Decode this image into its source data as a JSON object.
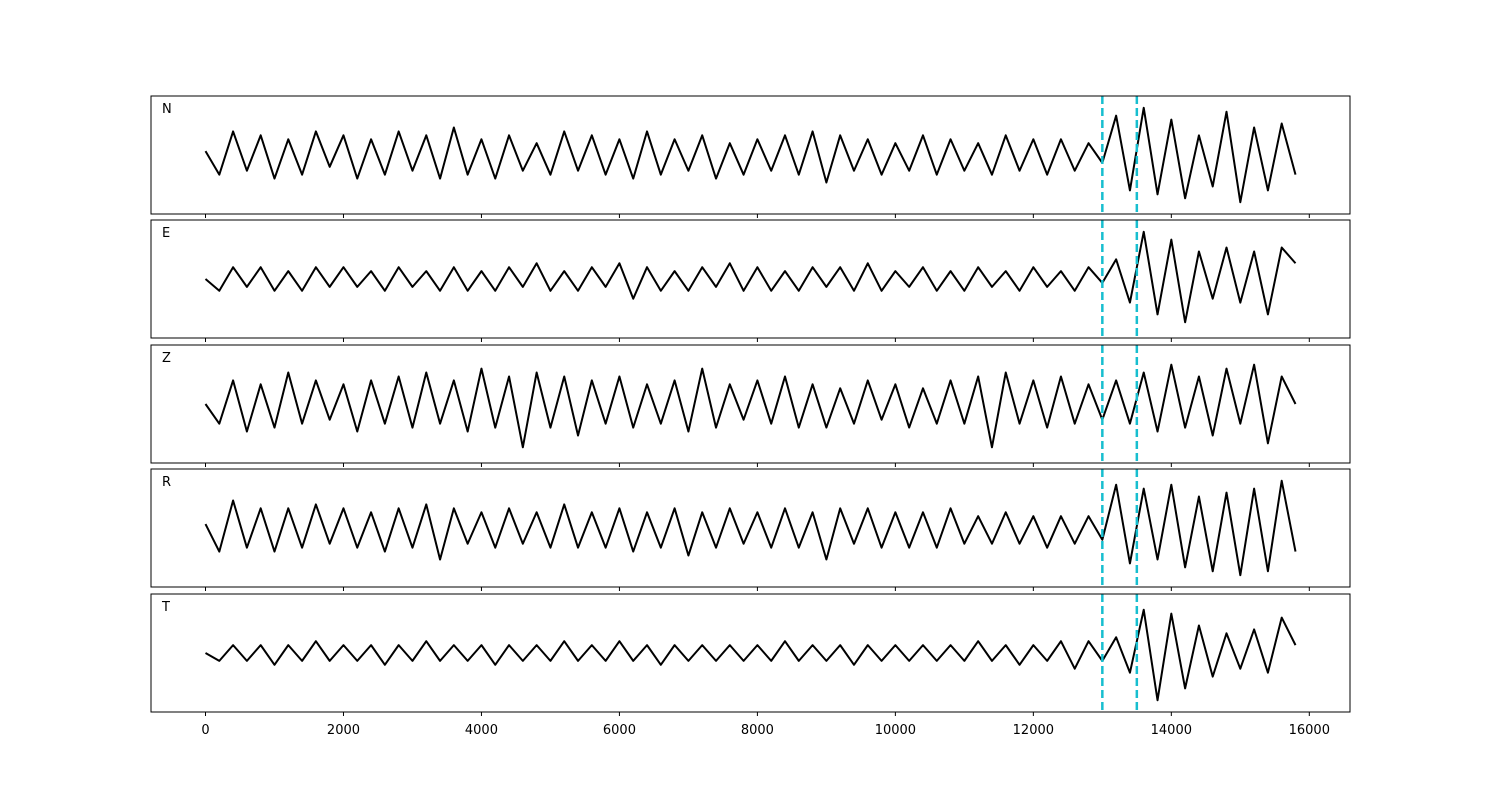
{
  "chart_data": [
    {
      "type": "line",
      "label": "N",
      "color": "#000000",
      "xlim": [
        -790,
        16590
      ],
      "ylim": [
        -1.5,
        1.5
      ],
      "vlines": [
        13000,
        13500
      ],
      "vline_color": "#17becf",
      "x": [
        0,
        200,
        400,
        600,
        800,
        1000,
        1200,
        1400,
        1600,
        1800,
        2000,
        2200,
        2400,
        2600,
        2800,
        3000,
        3200,
        3400,
        3600,
        3800,
        4000,
        4200,
        4400,
        4600,
        4800,
        5000,
        5200,
        5400,
        5600,
        5800,
        6000,
        6200,
        6400,
        6600,
        6800,
        7000,
        7200,
        7400,
        7600,
        7800,
        8000,
        8200,
        8400,
        8600,
        8800,
        9000,
        9200,
        9400,
        9600,
        9800,
        10000,
        10200,
        10400,
        10600,
        10800,
        11000,
        11200,
        11400,
        11600,
        11800,
        12000,
        12200,
        12400,
        12600,
        12800,
        13000,
        13200,
        13400,
        13600,
        13800,
        14000,
        14200,
        14400,
        14600,
        14800,
        15000,
        15200,
        15400,
        15600,
        15800
      ],
      "values": [
        0.1,
        -0.5,
        0.6,
        -0.4,
        0.5,
        -0.6,
        0.4,
        -0.5,
        0.6,
        -0.3,
        0.5,
        -0.6,
        0.4,
        -0.5,
        0.6,
        -0.4,
        0.5,
        -0.6,
        0.7,
        -0.5,
        0.4,
        -0.6,
        0.5,
        -0.4,
        0.3,
        -0.5,
        0.6,
        -0.4,
        0.5,
        -0.5,
        0.4,
        -0.6,
        0.6,
        -0.5,
        0.4,
        -0.4,
        0.5,
        -0.6,
        0.3,
        -0.5,
        0.4,
        -0.4,
        0.5,
        -0.5,
        0.6,
        -0.7,
        0.5,
        -0.4,
        0.4,
        -0.5,
        0.3,
        -0.4,
        0.5,
        -0.5,
        0.4,
        -0.4,
        0.3,
        -0.5,
        0.5,
        -0.4,
        0.4,
        -0.5,
        0.4,
        -0.4,
        0.3,
        -0.2,
        1.0,
        -0.9,
        1.2,
        -1.0,
        0.9,
        -1.1,
        0.5,
        -0.8,
        1.1,
        -1.2,
        0.7,
        -0.9,
        0.8,
        -0.5
      ]
    },
    {
      "type": "line",
      "label": "E",
      "color": "#000000",
      "xlim": [
        -790,
        16590
      ],
      "ylim": [
        -1.5,
        1.5
      ],
      "vlines": [
        13000,
        13500
      ],
      "vline_color": "#17becf",
      "x": [
        0,
        200,
        400,
        600,
        800,
        1000,
        1200,
        1400,
        1600,
        1800,
        2000,
        2200,
        2400,
        2600,
        2800,
        3000,
        3200,
        3400,
        3600,
        3800,
        4000,
        4200,
        4400,
        4600,
        4800,
        5000,
        5200,
        5400,
        5600,
        5800,
        6000,
        6200,
        6400,
        6600,
        6800,
        7000,
        7200,
        7400,
        7600,
        7800,
        8000,
        8200,
        8400,
        8600,
        8800,
        9000,
        9200,
        9400,
        9600,
        9800,
        10000,
        10200,
        10400,
        10600,
        10800,
        11000,
        11200,
        11400,
        11600,
        11800,
        12000,
        12200,
        12400,
        12600,
        12800,
        13000,
        13200,
        13400,
        13600,
        13800,
        14000,
        14200,
        14400,
        14600,
        14800,
        15000,
        15200,
        15400,
        15600,
        15800
      ],
      "values": [
        0.0,
        -0.3,
        0.3,
        -0.2,
        0.3,
        -0.3,
        0.2,
        -0.3,
        0.3,
        -0.2,
        0.3,
        -0.2,
        0.2,
        -0.3,
        0.3,
        -0.2,
        0.2,
        -0.3,
        0.3,
        -0.3,
        0.2,
        -0.3,
        0.3,
        -0.2,
        0.4,
        -0.3,
        0.2,
        -0.3,
        0.3,
        -0.2,
        0.4,
        -0.5,
        0.3,
        -0.3,
        0.2,
        -0.3,
        0.3,
        -0.2,
        0.4,
        -0.3,
        0.3,
        -0.3,
        0.2,
        -0.3,
        0.3,
        -0.2,
        0.3,
        -0.3,
        0.4,
        -0.3,
        0.2,
        -0.2,
        0.3,
        -0.3,
        0.2,
        -0.3,
        0.3,
        -0.2,
        0.2,
        -0.3,
        0.3,
        -0.2,
        0.2,
        -0.3,
        0.3,
        -0.1,
        0.5,
        -0.6,
        1.2,
        -0.9,
        1.0,
        -1.1,
        0.7,
        -0.5,
        0.8,
        -0.6,
        0.7,
        -0.9,
        0.8,
        0.4
      ]
    },
    {
      "type": "line",
      "label": "Z",
      "color": "#000000",
      "xlim": [
        -790,
        16590
      ],
      "ylim": [
        -1.5,
        1.5
      ],
      "vlines": [
        13000,
        13500
      ],
      "vline_color": "#17becf",
      "x": [
        0,
        200,
        400,
        600,
        800,
        1000,
        1200,
        1400,
        1600,
        1800,
        2000,
        2200,
        2400,
        2600,
        2800,
        3000,
        3200,
        3400,
        3600,
        3800,
        4000,
        4200,
        4400,
        4600,
        4800,
        5000,
        5200,
        5400,
        5600,
        5800,
        6000,
        6200,
        6400,
        6600,
        6800,
        7000,
        7200,
        7400,
        7600,
        7800,
        8000,
        8200,
        8400,
        8600,
        8800,
        9000,
        9200,
        9400,
        9600,
        9800,
        10000,
        10200,
        10400,
        10600,
        10800,
        11000,
        11200,
        11400,
        11600,
        11800,
        12000,
        12200,
        12400,
        12600,
        12800,
        13000,
        13200,
        13400,
        13600,
        13800,
        14000,
        14200,
        14400,
        14600,
        14800,
        15000,
        15200,
        15400,
        15600,
        15800
      ],
      "values": [
        0.0,
        -0.5,
        0.6,
        -0.7,
        0.5,
        -0.6,
        0.8,
        -0.5,
        0.6,
        -0.4,
        0.5,
        -0.7,
        0.6,
        -0.5,
        0.7,
        -0.6,
        0.8,
        -0.5,
        0.6,
        -0.7,
        0.9,
        -0.6,
        0.7,
        -1.1,
        0.8,
        -0.6,
        0.7,
        -0.8,
        0.6,
        -0.5,
        0.7,
        -0.6,
        0.5,
        -0.5,
        0.6,
        -0.7,
        0.9,
        -0.6,
        0.5,
        -0.4,
        0.6,
        -0.5,
        0.7,
        -0.6,
        0.5,
        -0.6,
        0.4,
        -0.5,
        0.6,
        -0.4,
        0.5,
        -0.6,
        0.4,
        -0.5,
        0.6,
        -0.5,
        0.7,
        -1.1,
        0.8,
        -0.5,
        0.6,
        -0.6,
        0.7,
        -0.5,
        0.5,
        -0.4,
        0.6,
        -0.5,
        0.8,
        -0.7,
        1.0,
        -0.6,
        0.7,
        -0.8,
        0.9,
        -0.5,
        1.0,
        -1.0,
        0.7,
        0.0
      ]
    },
    {
      "type": "line",
      "label": "R",
      "color": "#000000",
      "xlim": [
        -790,
        16590
      ],
      "ylim": [
        -1.5,
        1.5
      ],
      "vlines": [
        13000,
        13500
      ],
      "vline_color": "#17becf",
      "x": [
        0,
        200,
        400,
        600,
        800,
        1000,
        1200,
        1400,
        1600,
        1800,
        2000,
        2200,
        2400,
        2600,
        2800,
        3000,
        3200,
        3400,
        3600,
        3800,
        4000,
        4200,
        4400,
        4600,
        4800,
        5000,
        5200,
        5400,
        5600,
        5800,
        6000,
        6200,
        6400,
        6600,
        6800,
        7000,
        7200,
        7400,
        7600,
        7800,
        8000,
        8200,
        8400,
        8600,
        8800,
        9000,
        9200,
        9400,
        9600,
        9800,
        10000,
        10200,
        10400,
        10600,
        10800,
        11000,
        11200,
        11400,
        11600,
        11800,
        12000,
        12200,
        12400,
        12600,
        12800,
        13000,
        13200,
        13400,
        13600,
        13800,
        14000,
        14200,
        14400,
        14600,
        14800,
        15000,
        15200,
        15400,
        15600,
        15800
      ],
      "values": [
        0.1,
        -0.6,
        0.7,
        -0.5,
        0.5,
        -0.6,
        0.5,
        -0.5,
        0.6,
        -0.4,
        0.5,
        -0.5,
        0.4,
        -0.6,
        0.5,
        -0.5,
        0.6,
        -0.8,
        0.5,
        -0.4,
        0.4,
        -0.5,
        0.5,
        -0.4,
        0.4,
        -0.5,
        0.6,
        -0.5,
        0.4,
        -0.5,
        0.5,
        -0.6,
        0.4,
        -0.5,
        0.5,
        -0.7,
        0.4,
        -0.5,
        0.5,
        -0.4,
        0.4,
        -0.5,
        0.5,
        -0.5,
        0.4,
        -0.8,
        0.5,
        -0.4,
        0.5,
        -0.5,
        0.4,
        -0.5,
        0.4,
        -0.5,
        0.5,
        -0.4,
        0.3,
        -0.4,
        0.4,
        -0.4,
        0.3,
        -0.5,
        0.3,
        -0.4,
        0.3,
        -0.3,
        1.1,
        -0.9,
        1.0,
        -0.8,
        1.1,
        -1.0,
        0.8,
        -1.1,
        0.9,
        -1.2,
        1.0,
        -1.1,
        1.2,
        -0.6
      ]
    },
    {
      "type": "line",
      "label": "T",
      "color": "#000000",
      "xlim": [
        -790,
        16590
      ],
      "ylim": [
        -1.5,
        1.5
      ],
      "vlines": [
        13000,
        13500
      ],
      "vline_color": "#17becf",
      "xticks": [
        0,
        2000,
        4000,
        6000,
        8000,
        10000,
        12000,
        14000,
        16000
      ],
      "x": [
        0,
        200,
        400,
        600,
        800,
        1000,
        1200,
        1400,
        1600,
        1800,
        2000,
        2200,
        2400,
        2600,
        2800,
        3000,
        3200,
        3400,
        3600,
        3800,
        4000,
        4200,
        4400,
        4600,
        4800,
        5000,
        5200,
        5400,
        5600,
        5800,
        6000,
        6200,
        6400,
        6600,
        6800,
        7000,
        7200,
        7400,
        7600,
        7800,
        8000,
        8200,
        8400,
        8600,
        8800,
        9000,
        9200,
        9400,
        9600,
        9800,
        10000,
        10200,
        10400,
        10600,
        10800,
        11000,
        11200,
        11400,
        11600,
        11800,
        12000,
        12200,
        12400,
        12600,
        12800,
        13000,
        13200,
        13400,
        13600,
        13800,
        14000,
        14200,
        14400,
        14600,
        14800,
        15000,
        15200,
        15400,
        15600,
        15800
      ],
      "values": [
        0.0,
        -0.2,
        0.2,
        -0.2,
        0.2,
        -0.3,
        0.2,
        -0.2,
        0.3,
        -0.2,
        0.2,
        -0.2,
        0.2,
        -0.3,
        0.2,
        -0.2,
        0.3,
        -0.2,
        0.2,
        -0.2,
        0.2,
        -0.3,
        0.2,
        -0.2,
        0.2,
        -0.2,
        0.3,
        -0.2,
        0.2,
        -0.2,
        0.3,
        -0.2,
        0.2,
        -0.3,
        0.2,
        -0.2,
        0.2,
        -0.2,
        0.2,
        -0.2,
        0.2,
        -0.2,
        0.3,
        -0.2,
        0.2,
        -0.2,
        0.2,
        -0.3,
        0.2,
        -0.2,
        0.2,
        -0.2,
        0.2,
        -0.2,
        0.2,
        -0.2,
        0.3,
        -0.2,
        0.2,
        -0.3,
        0.2,
        -0.2,
        0.3,
        -0.4,
        0.3,
        -0.2,
        0.4,
        -0.5,
        1.1,
        -1.2,
        1.0,
        -0.9,
        0.7,
        -0.6,
        0.5,
        -0.4,
        0.6,
        -0.5,
        0.9,
        0.2
      ]
    }
  ]
}
